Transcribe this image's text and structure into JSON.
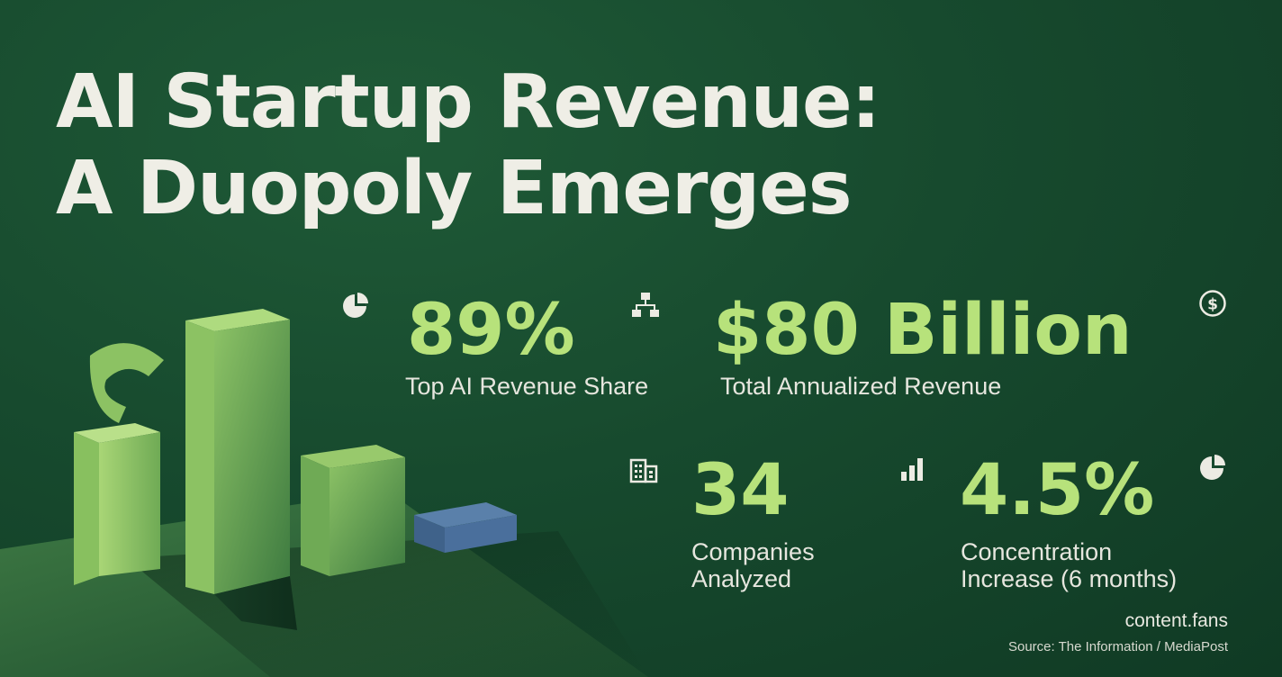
{
  "title": {
    "line1": "AI Startup Revenue:",
    "line2": "A Duopoly Emerges"
  },
  "colors": {
    "background": "#174a2e",
    "accent": "#b7e27b",
    "text": "#ecebe3",
    "bar_blue": "#4a6f9c"
  },
  "stats": [
    {
      "value": "89%",
      "label": "Top AI Revenue Share",
      "icon": "pie-chart-icon"
    },
    {
      "value": "$80 Billion",
      "label": "Total Annualized Revenue",
      "icon": "hierarchy-icon",
      "secondary_icon": "dollar-coin-icon"
    },
    {
      "value": "34",
      "label_line1": "Companies",
      "label_line2": "Analyzed",
      "icon": "building-icon"
    },
    {
      "value": "4.5%",
      "label_line1": "Concentration",
      "label_line2": "Increase (6 months)",
      "icon": "bar-chart-icon",
      "secondary_icon": "pie-chart-icon"
    }
  ],
  "footer": {
    "brand": "content.fans",
    "source": "Source: The Information / MediaPost"
  }
}
